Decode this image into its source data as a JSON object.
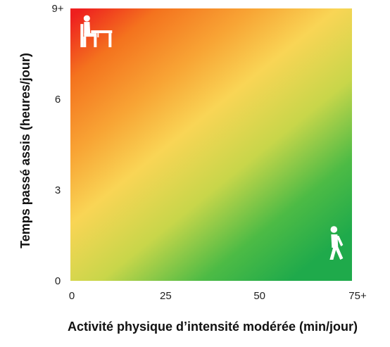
{
  "chart_data": {
    "type": "heatmap",
    "title": "",
    "xlabel": "Activité physique d’intensité modérée (min/jour)",
    "ylabel": "Temps passé assis (heures/jour)",
    "x_ticks": [
      {
        "value": 0,
        "label": "0"
      },
      {
        "value": 25,
        "label": "25"
      },
      {
        "value": 50,
        "label": "50"
      },
      {
        "value": 75,
        "label": "75+"
      }
    ],
    "y_ticks": [
      {
        "value": 0,
        "label": "0"
      },
      {
        "value": 3,
        "label": "3"
      },
      {
        "value": 6,
        "label": "6"
      },
      {
        "value": 9,
        "label": "9+"
      }
    ],
    "xlim": [
      0,
      75
    ],
    "ylim": [
      0,
      9
    ],
    "gradient": {
      "direction": "high sitting / low activity (top-left) to low sitting / high activity (bottom-right)",
      "stops": [
        {
          "color": "#ee1f1f"
        },
        {
          "color": "#f4731e"
        },
        {
          "color": "#f8a535"
        },
        {
          "color": "#f9d555"
        },
        {
          "color": "#c8d64a"
        },
        {
          "color": "#4dbb45"
        },
        {
          "color": "#1faa4b"
        }
      ]
    },
    "icons": [
      {
        "name": "sitting-person-icon",
        "x": 4,
        "y": 8.3
      },
      {
        "name": "walking-person-icon",
        "x": 70,
        "y": 1.0
      }
    ]
  }
}
